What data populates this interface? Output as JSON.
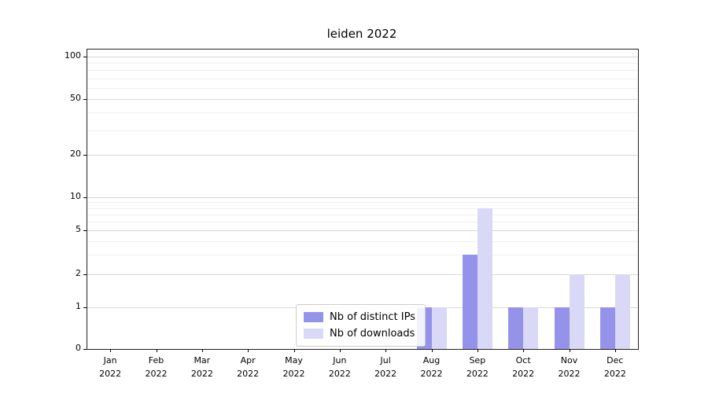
{
  "chart_data": {
    "type": "bar",
    "title": "leiden 2022",
    "categories": [
      "Jan 2022",
      "Feb 2022",
      "Mar 2022",
      "Apr 2022",
      "May 2022",
      "Jun 2022",
      "Jul 2022",
      "Aug 2022",
      "Sep 2022",
      "Oct 2022",
      "Nov 2022",
      "Dec 2022"
    ],
    "series": [
      {
        "name": "Nb of distinct IPs",
        "color": "#9593e9",
        "values": [
          0,
          0,
          0,
          0,
          0,
          0,
          0,
          1,
          3,
          1,
          1,
          1
        ]
      },
      {
        "name": "Nb of downloads",
        "color": "#d9d8f6",
        "values": [
          0,
          0,
          0,
          0,
          0,
          0,
          0,
          1,
          8,
          1,
          2,
          2
        ]
      }
    ],
    "yscale": "symlog",
    "yticks": [
      0,
      1,
      2,
      5,
      10,
      20,
      50,
      100
    ],
    "ylim": [
      0,
      100
    ],
    "grid": "horizontal",
    "legend_position": "lower center"
  }
}
